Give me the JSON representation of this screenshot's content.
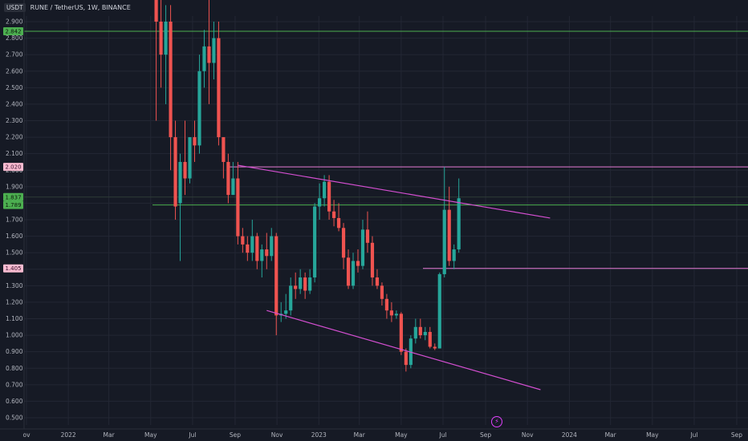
{
  "header": {
    "currency": "USDT",
    "title": "RUNE / TetherUS, 1W, BINANCE"
  },
  "icons": {
    "event": "lightning-icon"
  },
  "colors": {
    "background": "#161a25",
    "up": "#26a69a",
    "down": "#ef5350",
    "trendline": "#d44fd1",
    "hline_green": "#4caf50",
    "hline_pink": "#e57bd3",
    "grid": "#232734"
  },
  "chart_data": {
    "type": "candlestick",
    "title": "RUNE / TetherUS, 1W, BINANCE",
    "ylabel": "USDT",
    "ylim": [
      0.45,
      2.95
    ],
    "y_ticks": [
      "0.500",
      "0.600",
      "0.700",
      "0.800",
      "0.900",
      "1.000",
      "1.100",
      "1.200",
      "1.300",
      "1.400",
      "1.500",
      "1.600",
      "1.700",
      "1.800",
      "1.900",
      "2.000",
      "2.100",
      "2.200",
      "2.300",
      "2.400",
      "2.500",
      "2.600",
      "2.700",
      "2.800",
      "2.900"
    ],
    "x_ticks": [
      "ov",
      "2022",
      "Mar",
      "May",
      "Jul",
      "Sep",
      "Nov",
      "2023",
      "Mar",
      "May",
      "Jul",
      "Sep",
      "Nov",
      "2024",
      "Mar",
      "May",
      "Jul",
      "Sep"
    ],
    "x_tick_dates": [
      "2021-11-01",
      "2022-01-01",
      "2022-03-01",
      "2022-05-01",
      "2022-07-01",
      "2022-09-01",
      "2022-11-01",
      "2023-01-01",
      "2023-03-01",
      "2023-05-01",
      "2023-07-01",
      "2023-09-01",
      "2023-11-01",
      "2024-01-01",
      "2024-03-01",
      "2024-05-01",
      "2024-07-01",
      "2024-09-01"
    ],
    "first_candle_date": "2022-05-09",
    "candles": [
      [
        3.1,
        3.3,
        2.3,
        2.9
      ],
      [
        2.9,
        3.2,
        2.5,
        2.7
      ],
      [
        2.7,
        3.0,
        2.4,
        2.9
      ],
      [
        2.9,
        3.0,
        2.0,
        2.2
      ],
      [
        2.2,
        2.3,
        1.7,
        1.78
      ],
      [
        1.8,
        2.1,
        1.45,
        2.05
      ],
      [
        2.05,
        2.3,
        1.85,
        1.95
      ],
      [
        1.95,
        2.2,
        1.92,
        2.2
      ],
      [
        2.2,
        2.3,
        2.05,
        2.15
      ],
      [
        2.15,
        2.7,
        2.1,
        2.6
      ],
      [
        2.6,
        2.85,
        2.5,
        2.75
      ],
      [
        2.75,
        3.05,
        2.4,
        2.65
      ],
      [
        2.65,
        2.9,
        2.55,
        2.8
      ],
      [
        2.8,
        2.9,
        2.15,
        2.2
      ],
      [
        2.2,
        2.2,
        1.95,
        2.05
      ],
      [
        2.05,
        2.1,
        1.8,
        1.85
      ],
      [
        1.85,
        2.05,
        1.85,
        1.95
      ],
      [
        1.95,
        2.05,
        1.55,
        1.6
      ],
      [
        1.6,
        1.65,
        1.5,
        1.55
      ],
      [
        1.55,
        1.6,
        1.45,
        1.5
      ],
      [
        1.5,
        1.7,
        1.45,
        1.6
      ],
      [
        1.6,
        1.62,
        1.4,
        1.45
      ],
      [
        1.45,
        1.55,
        1.35,
        1.52
      ],
      [
        1.52,
        1.62,
        1.4,
        1.48
      ],
      [
        1.48,
        1.65,
        1.45,
        1.6
      ],
      [
        1.6,
        1.62,
        1.0,
        1.12
      ],
      [
        1.12,
        1.2,
        1.08,
        1.13
      ],
      [
        1.13,
        1.25,
        1.1,
        1.15
      ],
      [
        1.15,
        1.35,
        1.12,
        1.3
      ],
      [
        1.3,
        1.38,
        1.22,
        1.28
      ],
      [
        1.28,
        1.4,
        1.25,
        1.35
      ],
      [
        1.35,
        1.38,
        1.22,
        1.27
      ],
      [
        1.27,
        1.4,
        1.25,
        1.35
      ],
      [
        1.35,
        1.8,
        1.32,
        1.78
      ],
      [
        1.78,
        1.92,
        1.7,
        1.83
      ],
      [
        1.83,
        1.97,
        1.78,
        1.93
      ],
      [
        1.93,
        1.97,
        1.7,
        1.75
      ],
      [
        1.75,
        1.82,
        1.66,
        1.71
      ],
      [
        1.71,
        1.8,
        1.63,
        1.65
      ],
      [
        1.65,
        1.68,
        1.4,
        1.47
      ],
      [
        1.47,
        1.52,
        1.28,
        1.3
      ],
      [
        1.3,
        1.5,
        1.28,
        1.45
      ],
      [
        1.45,
        1.52,
        1.38,
        1.42
      ],
      [
        1.42,
        1.7,
        1.4,
        1.64
      ],
      [
        1.64,
        1.75,
        1.5,
        1.56
      ],
      [
        1.56,
        1.6,
        1.3,
        1.35
      ],
      [
        1.35,
        1.4,
        1.28,
        1.3
      ],
      [
        1.3,
        1.32,
        1.18,
        1.22
      ],
      [
        1.22,
        1.25,
        1.1,
        1.15
      ],
      [
        1.15,
        1.2,
        1.08,
        1.12
      ],
      [
        1.12,
        1.15,
        1.1,
        1.13
      ],
      [
        1.13,
        1.14,
        0.88,
        0.9
      ],
      [
        0.9,
        0.92,
        0.78,
        0.82
      ],
      [
        0.82,
        1.0,
        0.8,
        0.98
      ],
      [
        0.98,
        1.1,
        0.95,
        1.05
      ],
      [
        1.05,
        1.1,
        0.98,
        1.0
      ],
      [
        1.0,
        1.05,
        0.97,
        1.02
      ],
      [
        1.02,
        1.05,
        0.92,
        0.93
      ],
      [
        0.93,
        0.95,
        0.91,
        0.92
      ],
      [
        0.92,
        1.38,
        0.92,
        1.37
      ],
      [
        1.37,
        2.02,
        1.35,
        1.76
      ],
      [
        1.76,
        1.9,
        1.42,
        1.45
      ],
      [
        1.45,
        1.55,
        1.4,
        1.52
      ],
      [
        1.52,
        1.95,
        1.5,
        1.83
      ]
    ],
    "horizontal_lines": [
      {
        "value": 2.842,
        "style": "green"
      },
      {
        "value": 2.02,
        "style": "pink"
      },
      {
        "value": 1.837,
        "style": "green"
      },
      {
        "value": 1.789,
        "style": "green"
      },
      {
        "value": 1.405,
        "style": "pink"
      }
    ],
    "trendlines": [
      {
        "from": [
          "2022-09-05",
          2.03
        ],
        "to": [
          "2023-12-04",
          1.71
        ]
      },
      {
        "from": [
          "2022-10-17",
          1.15
        ],
        "to": [
          "2023-11-20",
          0.67
        ]
      }
    ],
    "price_labels": [
      {
        "value": 2.842,
        "text": "2.842",
        "style": "green"
      },
      {
        "value": 2.02,
        "text": "2.020",
        "style": "pink"
      },
      {
        "value": 1.837,
        "text": "1.837",
        "style": "green"
      },
      {
        "value": 1.789,
        "text": "1.789",
        "style": "green"
      },
      {
        "value": 1.405,
        "text": "1.405",
        "style": "pink"
      }
    ],
    "grid": true
  }
}
